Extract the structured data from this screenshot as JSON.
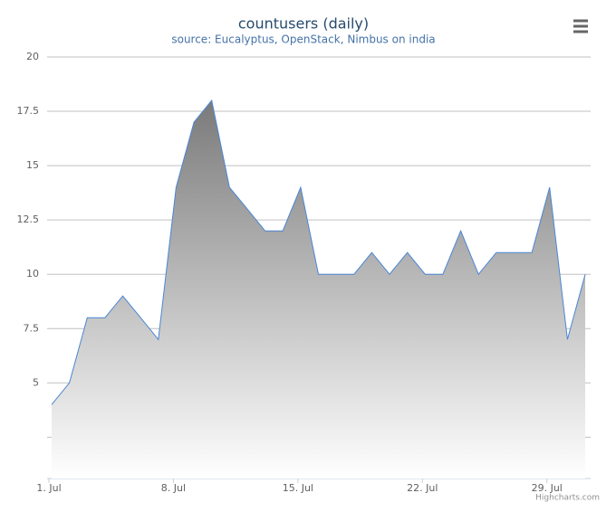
{
  "chart_data": {
    "type": "area",
    "title": "countusers (daily)",
    "subtitle": "source: Eucalyptus, OpenStack, Nimbus on india",
    "credits": "Highcharts.com",
    "categories": [
      "1. Jul",
      null,
      null,
      null,
      null,
      null,
      null,
      "8. Jul",
      null,
      null,
      null,
      null,
      null,
      null,
      "15. Jul",
      null,
      null,
      null,
      null,
      null,
      null,
      "22. Jul",
      null,
      null,
      null,
      null,
      null,
      null,
      "29. Jul",
      null,
      null
    ],
    "values": [
      4,
      5,
      8,
      8,
      9,
      8,
      7,
      14,
      17,
      18,
      14,
      13,
      12,
      12,
      14,
      10,
      10,
      10,
      11,
      10,
      11,
      10,
      10,
      12,
      10,
      11,
      11,
      11,
      14,
      7,
      10
    ],
    "color": "#4a86d4",
    "ylim": [
      0.6,
      20
    ],
    "yticks": [
      {
        "value": 2.5,
        "label": null
      },
      5,
      7.5,
      10,
      12.5,
      15,
      17.5,
      20
    ],
    "grid": true
  }
}
